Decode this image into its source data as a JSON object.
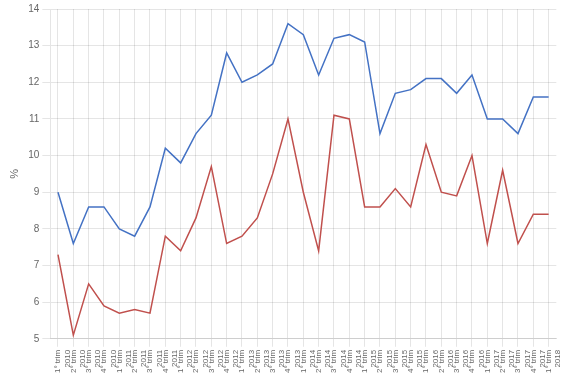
{
  "chart_data": {
    "type": "line",
    "categories": [
      "1° trim\n2010",
      "2° trim\n2010",
      "3° trim\n2010",
      "4° trim\n2010",
      "1° trim\n2011",
      "2° trim\n2011",
      "3° trim\n2011",
      "4° trim\n2011",
      "1° trim\n2012",
      "2° trim\n2012",
      "3° trim\n2012",
      "4° trim\n2012",
      "1° trim\n2013",
      "2° trim\n2013",
      "3° trim\n2013",
      "4° trim\n2013",
      "1° trim\n2014",
      "2° trim\n2014",
      "3° trim\n2014",
      "4° trim\n2014",
      "1° trim\n2015",
      "2° trim\n2015",
      "3° trim\n2015",
      "4° trim\n2015",
      "1° trim\n2016",
      "2° trim\n2016",
      "3° trim\n2016",
      "4° trim\n2016",
      "1° trim\n2017",
      "2° trim\n2017",
      "3° trim\n2017",
      "4° trim\n2017",
      "1° trim\n2018"
    ],
    "series": [
      {
        "color": "#4472C4",
        "values": [
          9.0,
          7.6,
          8.6,
          8.6,
          8.0,
          7.8,
          8.6,
          10.2,
          9.8,
          10.6,
          11.1,
          12.8,
          12.0,
          12.2,
          12.5,
          13.6,
          13.3,
          12.2,
          13.2,
          13.3,
          13.1,
          10.6,
          11.7,
          11.8,
          12.1,
          12.1,
          11.7,
          12.2,
          11.0,
          11.0,
          10.6,
          11.6,
          11.6
        ]
      },
      {
        "color": "#C0504D",
        "values": [
          7.3,
          5.1,
          6.5,
          5.9,
          5.7,
          5.8,
          5.7,
          7.8,
          7.4,
          8.3,
          9.7,
          7.6,
          7.8,
          8.3,
          9.5,
          11.0,
          9.0,
          7.4,
          11.1,
          11.0,
          8.6,
          8.6,
          9.1,
          8.6,
          10.3,
          9.0,
          8.9,
          10.0,
          7.6,
          9.6,
          7.6,
          8.4,
          8.4
        ]
      }
    ],
    "ylabel": "%",
    "ylim": [
      5,
      14
    ],
    "yticks": [
      5,
      6,
      7,
      8,
      9,
      10,
      11,
      12,
      13,
      14
    ],
    "grid": true
  }
}
